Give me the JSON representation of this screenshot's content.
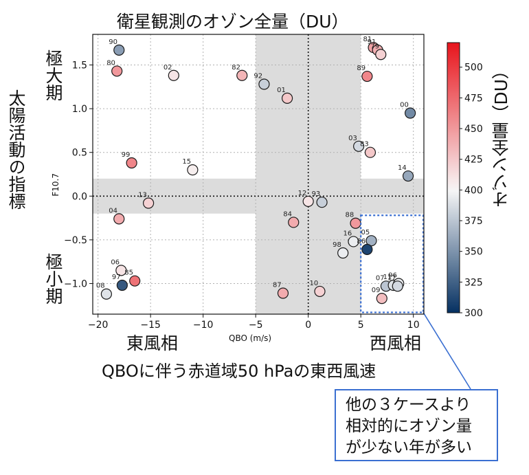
{
  "chart_data": {
    "type": "scatter",
    "title": "衛星観測のオゾン全量（DU）",
    "xlabel": "QBO (m/s)",
    "xlabel_main": "QBOに伴う赤道域50 hPaの東西風速",
    "x_east_label": "東風相",
    "x_west_label": "西風相",
    "ylabel": "F10.7",
    "ylabel_main": "太陽活動の指標",
    "y_high_label": "極大期",
    "y_low_label": "極小期",
    "xlim": [
      -20.5,
      11
    ],
    "ylim": [
      -1.35,
      1.85
    ],
    "x_ticks": [
      -20,
      -15,
      -10,
      -5,
      0,
      5,
      10
    ],
    "x_tick_labels": [
      "−20",
      "−15",
      "−10",
      "−5",
      "0",
      "5",
      "10"
    ],
    "y_ticks": [
      1.5,
      1.0,
      0.5,
      0.0,
      -0.5,
      -1.0
    ],
    "y_tick_labels": [
      "1.5",
      "1.0",
      "0.5",
      "0.0",
      "−0.5",
      "−1.0"
    ],
    "grid": true,
    "shaded_x_band": [
      -5,
      5
    ],
    "shaded_y_band": [
      -0.2,
      0.2
    ],
    "colorbar": {
      "label": "オゾン全量（DU）",
      "min": 300,
      "max": 520,
      "ticks": [
        500,
        475,
        450,
        425,
        400,
        375,
        350,
        325,
        300
      ],
      "tick_labels": [
        "500",
        "475",
        "450",
        "425",
        "400",
        "375",
        "350",
        "325",
        "300"
      ],
      "low_color": "#053061",
      "mid_color": "#f7f7f7",
      "high_color": "#e8141c"
    },
    "highlight_box": {
      "x_range": [
        5,
        11
      ],
      "y_range": [
        -1.33,
        -0.22
      ],
      "color": "#3a6fd1",
      "note_lines": [
        "他の３ケースより",
        "相対的にオゾン量",
        "が少ない年が多い"
      ]
    },
    "points": [
      {
        "label": "90",
        "x": -18.0,
        "y": 1.67,
        "value": 355
      },
      {
        "label": "80",
        "x": -18.2,
        "y": 1.43,
        "value": 450
      },
      {
        "label": "02",
        "x": -12.8,
        "y": 1.38,
        "value": 410
      },
      {
        "label": "82",
        "x": -6.3,
        "y": 1.38,
        "value": 435
      },
      {
        "label": "92",
        "x": -4.2,
        "y": 1.28,
        "value": 380
      },
      {
        "label": "01",
        "x": -2.0,
        "y": 1.12,
        "value": 425
      },
      {
        "label": "81",
        "x": 6.2,
        "y": 1.7,
        "value": 445
      },
      {
        "label": "91",
        "x": 6.6,
        "y": 1.67,
        "value": 438
      },
      {
        "label": "79",
        "x": 6.9,
        "y": 1.62,
        "value": 420
      },
      {
        "label": "89",
        "x": 5.6,
        "y": 1.37,
        "value": 460
      },
      {
        "label": "00",
        "x": 9.7,
        "y": 0.95,
        "value": 345
      },
      {
        "label": "03",
        "x": 4.8,
        "y": 0.57,
        "value": 385
      },
      {
        "label": "83",
        "x": 5.9,
        "y": 0.5,
        "value": 425
      },
      {
        "label": "99",
        "x": -16.8,
        "y": 0.38,
        "value": 460
      },
      {
        "label": "15",
        "x": -11.0,
        "y": 0.3,
        "value": 405
      },
      {
        "label": "14",
        "x": 9.5,
        "y": 0.23,
        "value": 360
      },
      {
        "label": "13",
        "x": -15.2,
        "y": -0.08,
        "value": 420
      },
      {
        "label": "12",
        "x": 0.0,
        "y": -0.06,
        "value": 410
      },
      {
        "label": "93",
        "x": 1.3,
        "y": -0.07,
        "value": 380
      },
      {
        "label": "04",
        "x": -18.0,
        "y": -0.26,
        "value": 440
      },
      {
        "label": "84",
        "x": -1.4,
        "y": -0.3,
        "value": 440
      },
      {
        "label": "88",
        "x": 4.5,
        "y": -0.31,
        "value": 450
      },
      {
        "label": "16",
        "x": 4.3,
        "y": -0.52,
        "value": 395
      },
      {
        "label": "05",
        "x": 6.0,
        "y": -0.51,
        "value": 365
      },
      {
        "label": "86",
        "x": 5.6,
        "y": -0.61,
        "value": 310
      },
      {
        "label": "98",
        "x": 3.3,
        "y": -0.65,
        "value": 395
      },
      {
        "label": "06",
        "x": -17.8,
        "y": -0.85,
        "value": 410
      },
      {
        "label": "97",
        "x": -17.7,
        "y": -1.02,
        "value": 320
      },
      {
        "label": "85",
        "x": -16.5,
        "y": -0.97,
        "value": 470
      },
      {
        "label": "08",
        "x": -19.2,
        "y": -1.12,
        "value": 390
      },
      {
        "label": "87",
        "x": -2.4,
        "y": -1.11,
        "value": 440
      },
      {
        "label": "10",
        "x": 1.1,
        "y": -1.09,
        "value": 420
      },
      {
        "label": "07",
        "x": 7.4,
        "y": -1.03,
        "value": 375
      },
      {
        "label": "11",
        "x": 8.1,
        "y": -1.02,
        "value": 390
      },
      {
        "label": "96",
        "x": 8.6,
        "y": -1.0,
        "value": 395
      },
      {
        "label": "17",
        "x": 8.5,
        "y": -1.03,
        "value": 385
      },
      {
        "label": "09",
        "x": 7.0,
        "y": -1.17,
        "value": 430
      }
    ]
  }
}
